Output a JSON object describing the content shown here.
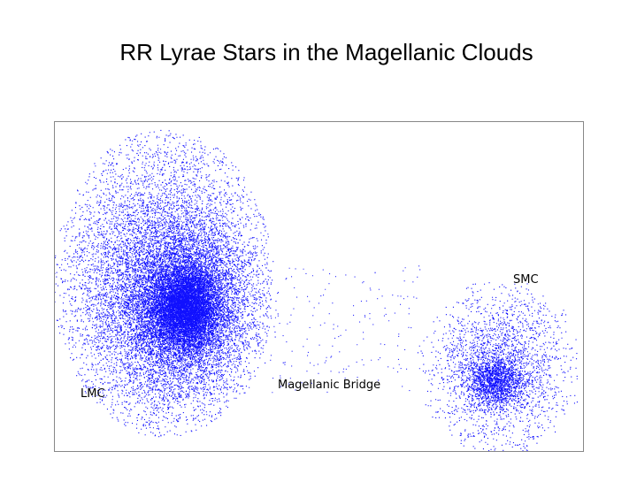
{
  "title": "RR Lyrae Stars in the Magellanic Clouds",
  "labels": {
    "lmc": "LMC",
    "bridge": "Magellanic Bridge",
    "smc": "SMC"
  }
}
